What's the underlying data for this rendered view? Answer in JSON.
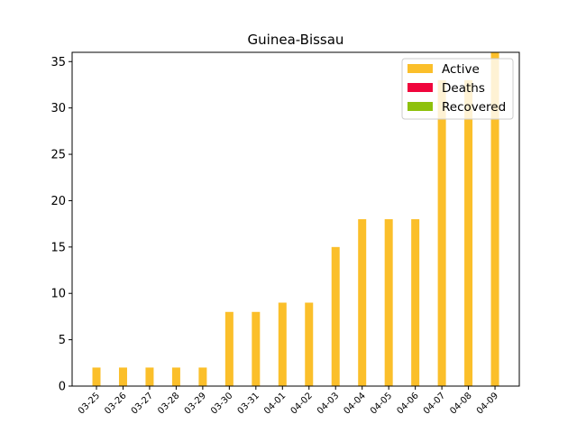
{
  "chart_data": {
    "type": "bar",
    "title": "Guinea-Bissau",
    "xlabel": "",
    "ylabel": "",
    "categories": [
      "03-25",
      "03-26",
      "03-27",
      "03-28",
      "03-29",
      "03-30",
      "03-31",
      "04-01",
      "04-02",
      "04-03",
      "04-04",
      "04-05",
      "04-06",
      "04-07",
      "04-08",
      "04-09"
    ],
    "series": [
      {
        "name": "Active",
        "color": "#fbbf2a",
        "values": [
          2,
          2,
          2,
          2,
          2,
          8,
          8,
          9,
          9,
          15,
          18,
          18,
          18,
          33,
          33,
          36
        ]
      },
      {
        "name": "Deaths",
        "color": "#f0053c",
        "values": [
          0,
          0,
          0,
          0,
          0,
          0,
          0,
          0,
          0,
          0,
          0,
          0,
          0,
          0,
          0,
          0
        ]
      },
      {
        "name": "Recovered",
        "color": "#8ec10c",
        "values": [
          0,
          0,
          0,
          0,
          0,
          0,
          0,
          0,
          0,
          0,
          0,
          0,
          0,
          0,
          0,
          0
        ]
      }
    ],
    "ylim": [
      0,
      36
    ],
    "yticks": [
      0,
      5,
      10,
      15,
      20,
      25,
      30,
      35
    ],
    "grid": false,
    "legend_position": "top-right"
  }
}
